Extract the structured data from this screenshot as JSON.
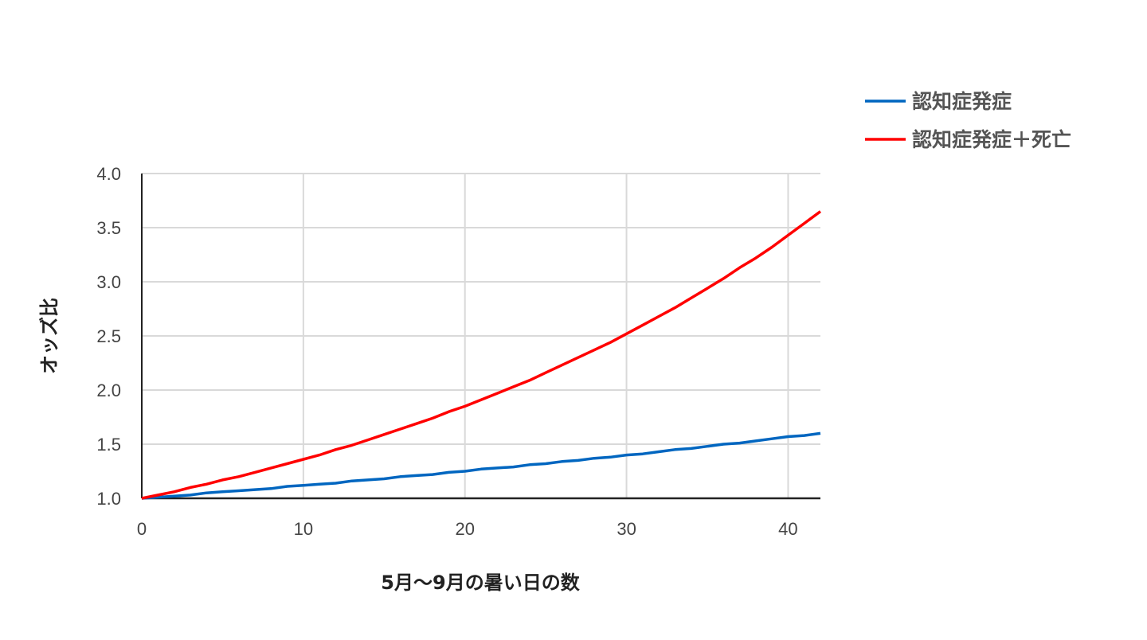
{
  "chart_data": {
    "type": "line",
    "title": "",
    "xlabel": "5月〜9月の暑い日の数",
    "ylabel": "オッズ比",
    "xlim": [
      0,
      42
    ],
    "ylim": [
      1.0,
      4.0
    ],
    "xticks": [
      "0",
      "10",
      "20",
      "30",
      "40"
    ],
    "yticks": [
      "1.0",
      "1.5",
      "2.0",
      "2.5",
      "3.0",
      "3.5",
      "4.0"
    ],
    "grid": true,
    "legend_position": "top-right",
    "x": [
      0,
      1,
      2,
      3,
      4,
      5,
      6,
      7,
      8,
      9,
      10,
      11,
      12,
      13,
      14,
      15,
      16,
      17,
      18,
      19,
      20,
      21,
      22,
      23,
      24,
      25,
      26,
      27,
      28,
      29,
      30,
      31,
      32,
      33,
      34,
      35,
      36,
      37,
      38,
      39,
      40,
      41,
      42
    ],
    "series": [
      {
        "name": "認知症発症",
        "color": "#0066c0",
        "values": [
          1.0,
          1.01,
          1.02,
          1.03,
          1.05,
          1.06,
          1.07,
          1.08,
          1.09,
          1.11,
          1.12,
          1.13,
          1.14,
          1.16,
          1.17,
          1.18,
          1.2,
          1.21,
          1.22,
          1.24,
          1.25,
          1.27,
          1.28,
          1.29,
          1.31,
          1.32,
          1.34,
          1.35,
          1.37,
          1.38,
          1.4,
          1.41,
          1.43,
          1.45,
          1.46,
          1.48,
          1.5,
          1.51,
          1.53,
          1.55,
          1.57,
          1.58,
          1.6
        ]
      },
      {
        "name": "認知症発症＋死亡",
        "color": "#ff0000",
        "values": [
          1.0,
          1.03,
          1.06,
          1.1,
          1.13,
          1.17,
          1.2,
          1.24,
          1.28,
          1.32,
          1.36,
          1.4,
          1.45,
          1.49,
          1.54,
          1.59,
          1.64,
          1.69,
          1.74,
          1.8,
          1.85,
          1.91,
          1.97,
          2.03,
          2.09,
          2.16,
          2.23,
          2.3,
          2.37,
          2.44,
          2.52,
          2.6,
          2.68,
          2.76,
          2.85,
          2.94,
          3.03,
          3.13,
          3.22,
          3.32,
          3.43,
          3.54,
          3.65
        ]
      }
    ]
  }
}
